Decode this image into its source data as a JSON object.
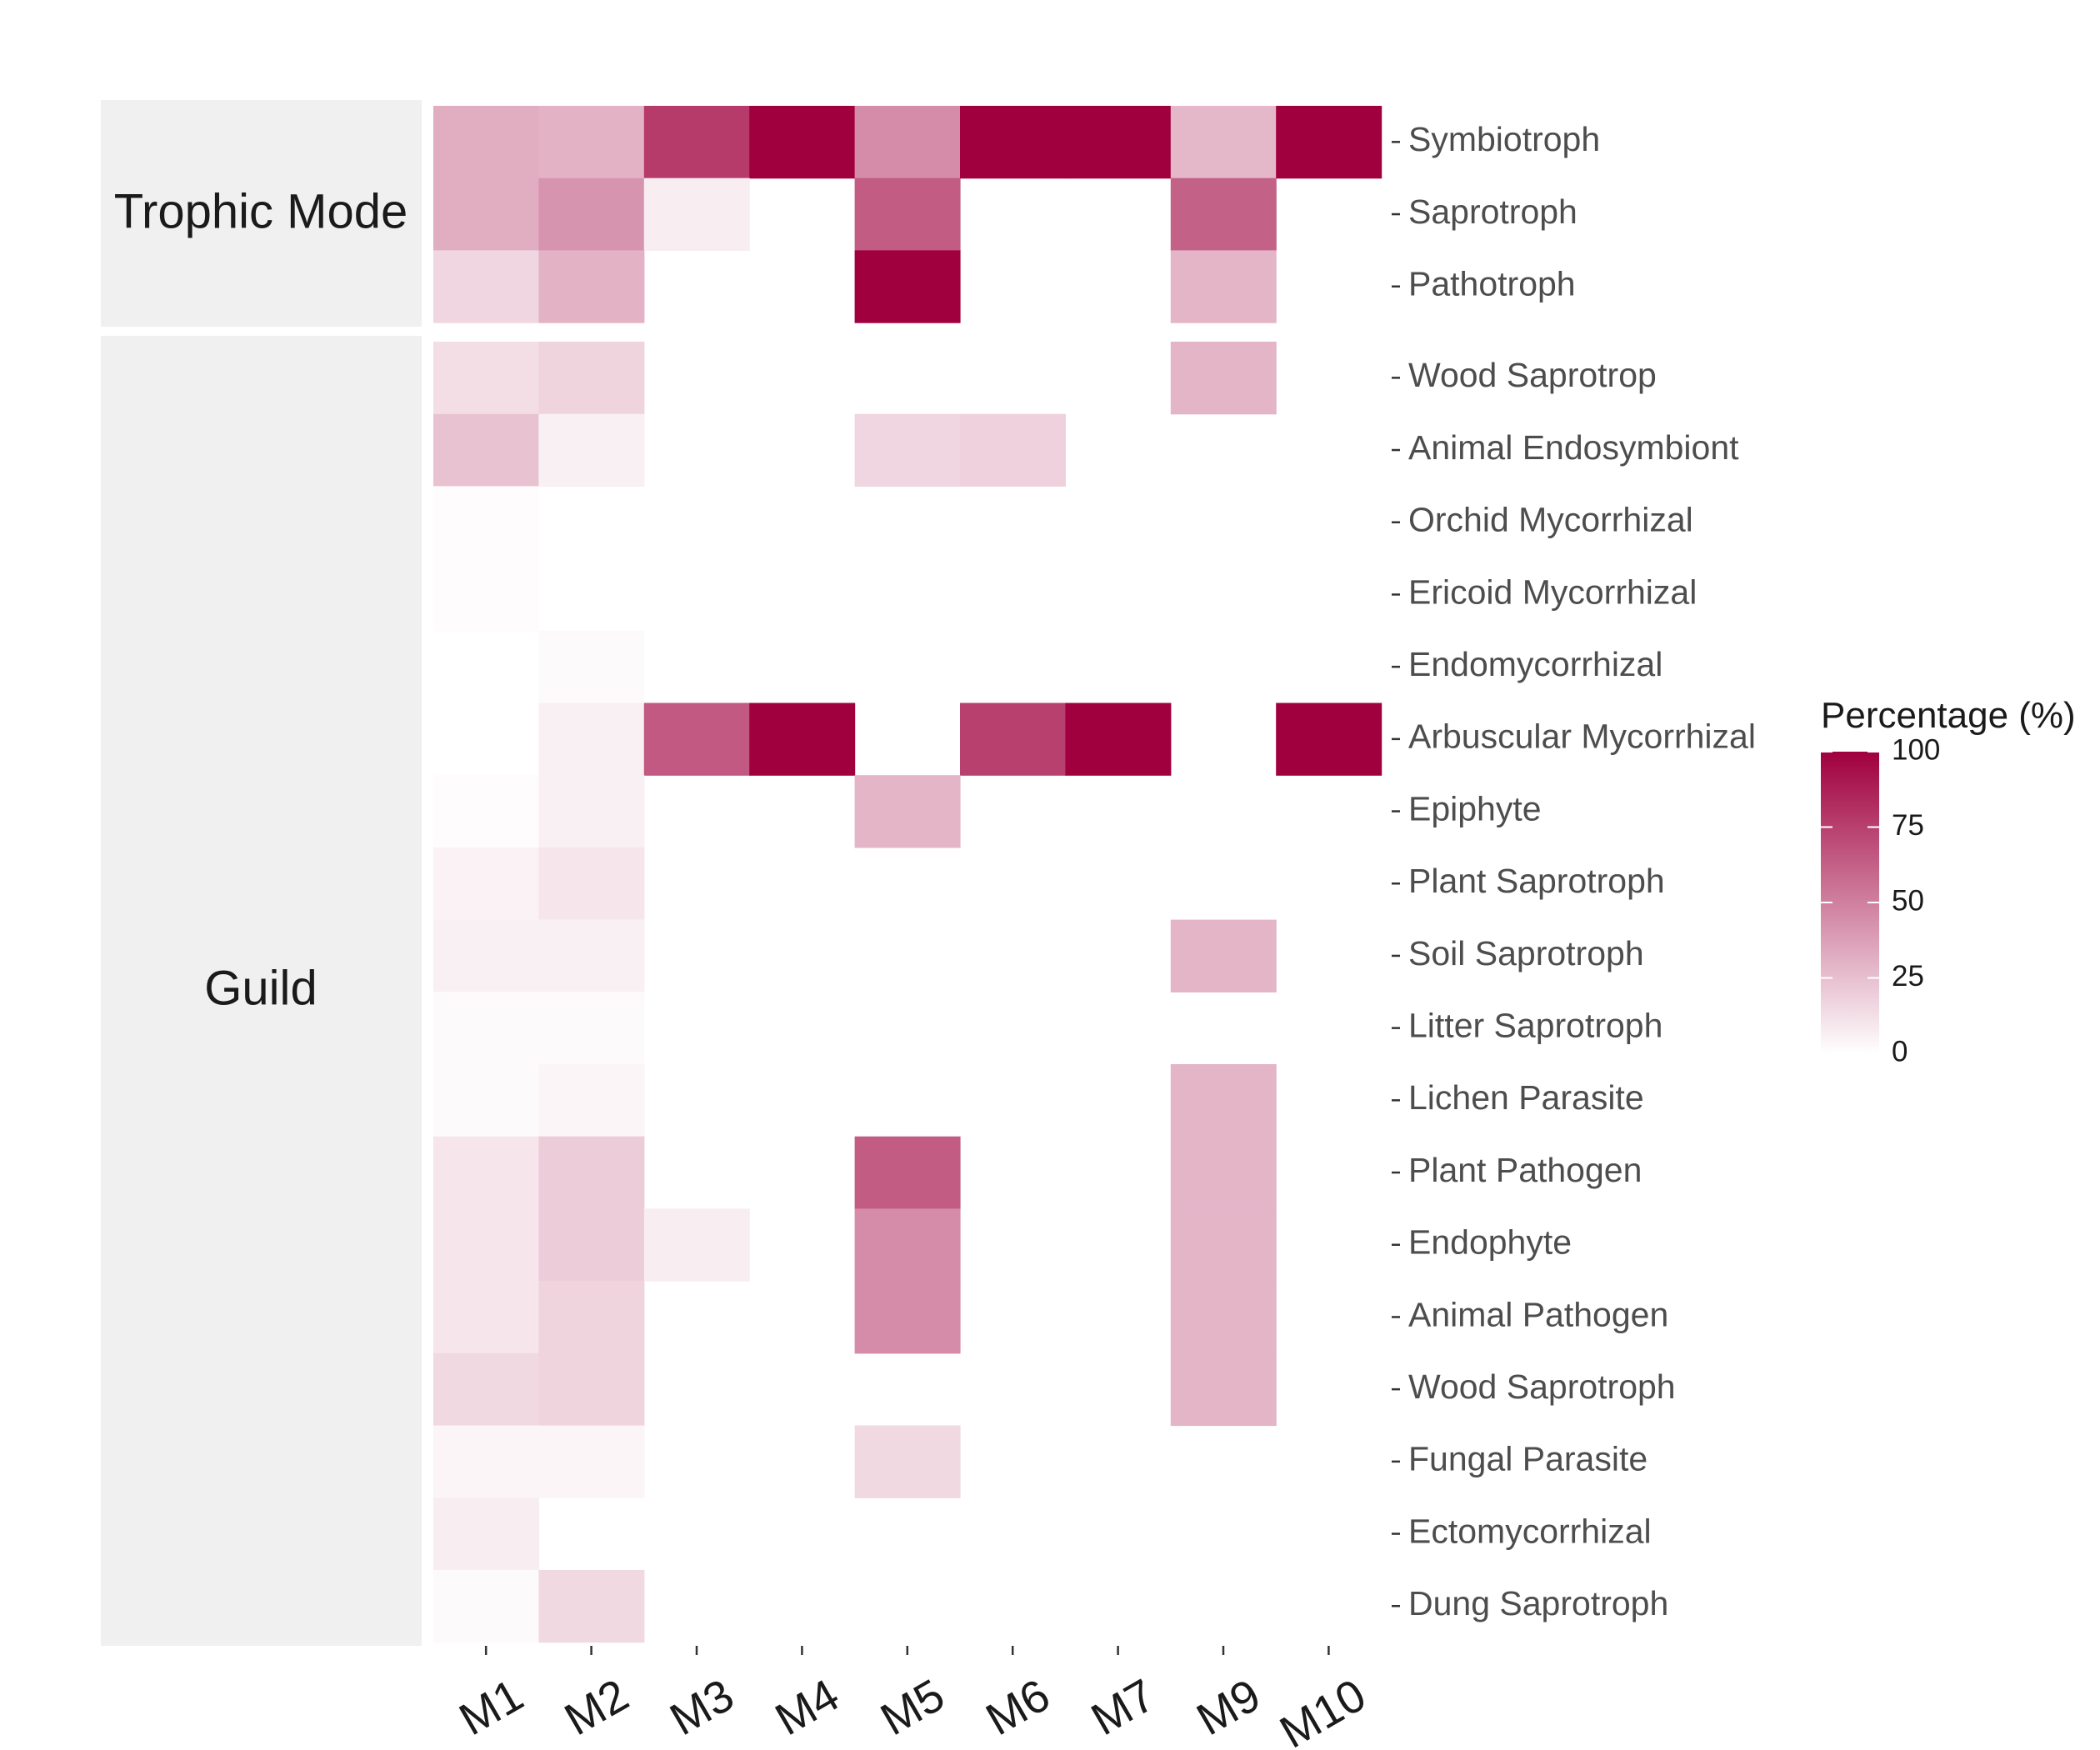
{
  "chart_data": {
    "type": "heatmap",
    "columns": [
      "M1",
      "M2",
      "M3",
      "M4",
      "M5",
      "M6",
      "M7",
      "M9",
      "M10"
    ],
    "panels": [
      {
        "name": "Trophic Mode",
        "rows": [
          "Symbiotroph",
          "Saprotroph",
          "Pathotroph"
        ],
        "values": [
          [
            32,
            30,
            77,
            100,
            45,
            100,
            100,
            28,
            100
          ],
          [
            32,
            42,
            7,
            null,
            64,
            null,
            null,
            62,
            null
          ],
          [
            16,
            30,
            null,
            null,
            100,
            null,
            null,
            29,
            null
          ]
        ]
      },
      {
        "name": "Guild",
        "rows": [
          "Wood Saprotrop",
          "Animal Endosymbiont",
          "Orchid Mycorrhizal",
          "Ericoid Mycorrhizal",
          "Endomycorrhizal",
          "Arbuscular Mycorrhizal",
          "Epiphyte",
          "Plant Saprotroph",
          "Soil Saprotroph",
          "Litter Saprotroph",
          "Lichen Parasite",
          "Plant Pathogen",
          "Endophyte",
          "Animal Pathogen",
          "Wood Saprotroph",
          "Fungal Parasite",
          "Ectomycorrhizal",
          "Dung Saprotroph"
        ],
        "values": [
          [
            13,
            17,
            null,
            null,
            null,
            null,
            null,
            29,
            null
          ],
          [
            24,
            6,
            null,
            null,
            16,
            18,
            null,
            null,
            null
          ],
          [
            1,
            null,
            null,
            null,
            null,
            null,
            null,
            null,
            null
          ],
          [
            1,
            null,
            null,
            null,
            null,
            null,
            null,
            null,
            null
          ],
          [
            null,
            2,
            null,
            null,
            null,
            null,
            null,
            null,
            null
          ],
          [
            null,
            6,
            65,
            100,
            null,
            75,
            100,
            null,
            100
          ],
          [
            1,
            6,
            null,
            null,
            29,
            null,
            null,
            null,
            null
          ],
          [
            5,
            10,
            null,
            null,
            null,
            null,
            null,
            null,
            null
          ],
          [
            6,
            6,
            null,
            null,
            null,
            null,
            null,
            29,
            null
          ],
          [
            2,
            2,
            null,
            null,
            null,
            null,
            null,
            null,
            null
          ],
          [
            2,
            4,
            null,
            null,
            null,
            null,
            null,
            29,
            null
          ],
          [
            10,
            20,
            null,
            null,
            64,
            null,
            null,
            29,
            null
          ],
          [
            10,
            20,
            7,
            null,
            45,
            null,
            null,
            29,
            null
          ],
          [
            10,
            17,
            null,
            null,
            45,
            null,
            null,
            29,
            null
          ],
          [
            15,
            17,
            null,
            null,
            null,
            null,
            null,
            29,
            null
          ],
          [
            4,
            4,
            null,
            null,
            15,
            null,
            null,
            null,
            null
          ],
          [
            7,
            null,
            null,
            null,
            null,
            null,
            null,
            null,
            null
          ],
          [
            2,
            15,
            null,
            null,
            null,
            null,
            null,
            null,
            null
          ]
        ]
      }
    ],
    "legend": {
      "title": "Percentage (%)",
      "ticks": [
        100,
        75,
        50,
        25,
        0
      ],
      "range": [
        0,
        100
      ],
      "low_color": "#ffffff",
      "high_color": "#a0003e",
      "position": "right"
    }
  }
}
